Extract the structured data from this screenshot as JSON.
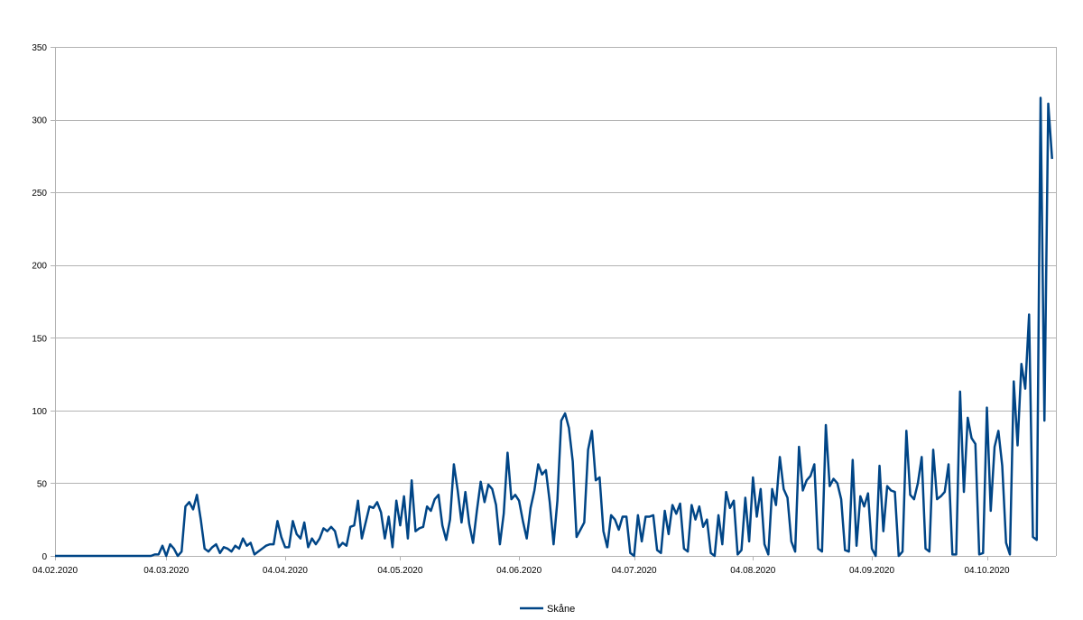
{
  "chart_data": {
    "type": "line",
    "title": "",
    "xlabel": "",
    "ylabel": "",
    "ylim": [
      0,
      350
    ],
    "yticks": [
      0,
      50,
      100,
      150,
      200,
      250,
      300,
      350
    ],
    "xlim": [
      "2020-02-04",
      "2020-10-22"
    ],
    "xtick_dates": [
      "2020-02-04",
      "2020-03-04",
      "2020-04-04",
      "2020-05-04",
      "2020-06-04",
      "2020-07-04",
      "2020-08-04",
      "2020-09-04",
      "2020-10-04"
    ],
    "xtick_labels": [
      "04.02.2020",
      "04.03.2020",
      "04.04.2020",
      "04.05.2020",
      "04.06.2020",
      "04.07.2020",
      "04.08.2020",
      "04.09.2020",
      "04.10.2020"
    ],
    "grid": "horizontal",
    "legend_position": "bottom",
    "series": [
      {
        "name": "Skåne",
        "color": "#004586",
        "x_start": "2020-02-04",
        "x_step_days": 1,
        "values": [
          0,
          0,
          0,
          0,
          0,
          0,
          0,
          0,
          0,
          0,
          0,
          0,
          0,
          0,
          0,
          0,
          0,
          0,
          0,
          0,
          0,
          0,
          0,
          0,
          0,
          0,
          1,
          1,
          7,
          0,
          8,
          5,
          0,
          3,
          34,
          37,
          32,
          42,
          25,
          5,
          3,
          6,
          8,
          2,
          6,
          5,
          3,
          7,
          5,
          12,
          7,
          9,
          1,
          3,
          5,
          7,
          8,
          8,
          24,
          13,
          6,
          6,
          24,
          15,
          12,
          23,
          6,
          12,
          8,
          12,
          19,
          17,
          20,
          17,
          6,
          9,
          7,
          20,
          21,
          38,
          12,
          23,
          34,
          33,
          37,
          30,
          12,
          27,
          6,
          38,
          21,
          41,
          12,
          52,
          17,
          19,
          20,
          34,
          31,
          39,
          42,
          21,
          11,
          25,
          63,
          45,
          23,
          44,
          22,
          9,
          31,
          51,
          37,
          49,
          46,
          35,
          8,
          29,
          71,
          39,
          42,
          38,
          24,
          12,
          33,
          45,
          63,
          56,
          59,
          37,
          8,
          38,
          93,
          98,
          88,
          65,
          13,
          18,
          23,
          73,
          86,
          52,
          54,
          17,
          6,
          28,
          25,
          18,
          27,
          27,
          2,
          0,
          28,
          10,
          27,
          27,
          28,
          4,
          2,
          31,
          15,
          35,
          29,
          36,
          5,
          3,
          35,
          25,
          34,
          20,
          25,
          2,
          0,
          28,
          8,
          44,
          33,
          38,
          1,
          4,
          40,
          10,
          54,
          27,
          46,
          8,
          1,
          46,
          35,
          68,
          46,
          40,
          10,
          3,
          75,
          45,
          52,
          55,
          63,
          5,
          3,
          90,
          48,
          53,
          50,
          39,
          4,
          3,
          66,
          7,
          41,
          34,
          43,
          5,
          0,
          62,
          17,
          48,
          45,
          44,
          0,
          3,
          86,
          42,
          39,
          50,
          68,
          5,
          3,
          73,
          39,
          41,
          44,
          63,
          1,
          1,
          113,
          44,
          95,
          81,
          77,
          1,
          2,
          102,
          31,
          75,
          86,
          62,
          9,
          1,
          120,
          76,
          132,
          115,
          166,
          13,
          11,
          315,
          93,
          311,
          273
        ]
      }
    ]
  }
}
